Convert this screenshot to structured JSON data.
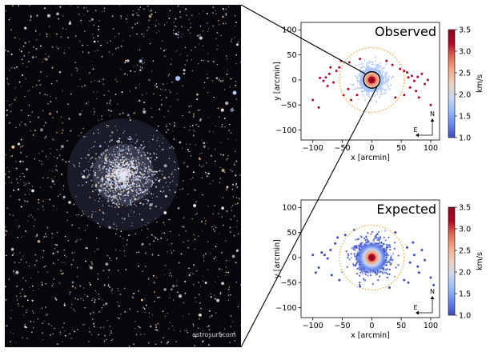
{
  "photo_credit": "astrosurf.com",
  "colorbar": {
    "label": "km/s",
    "ticks": [
      1.0,
      1.5,
      2.0,
      2.5,
      3.0,
      3.5
    ],
    "tick_labels": [
      "1.0",
      "1.5",
      "2.0",
      "2.5",
      "3.0",
      "3.5"
    ],
    "cmap_stops": [
      "#3b4cc0",
      "#6788ee",
      "#9abbff",
      "#c9d7f0",
      "#edd1c2",
      "#f7a889",
      "#e26952",
      "#b40426",
      "#8c0a1f"
    ]
  },
  "compass": {
    "north": "N",
    "east": "E"
  },
  "chart_data": [
    {
      "type": "scatter",
      "title": "Observed",
      "xlabel": "x [arcmin]",
      "ylabel": "y [arcmin]",
      "xlim": [
        -120,
        115
      ],
      "ylim": [
        -120,
        115
      ],
      "xticks": [
        -100,
        -50,
        0,
        50,
        100
      ],
      "yticks": [
        -100,
        -50,
        0,
        50,
        100
      ],
      "tidal_radius": 55,
      "core_zoom_radius": 14,
      "sparse_red_stars": [
        [
          -78,
          5
        ],
        [
          -82,
          -2
        ],
        [
          -72,
          12
        ],
        [
          -65,
          -5
        ],
        [
          -88,
          4
        ],
        [
          -75,
          -12
        ],
        [
          -60,
          18
        ],
        [
          -55,
          25
        ],
        [
          -48,
          -30
        ],
        [
          -52,
          38
        ],
        [
          -38,
          35
        ],
        [
          -35,
          -40
        ],
        [
          -20,
          42
        ],
        [
          25,
          38
        ],
        [
          35,
          30
        ],
        [
          48,
          22
        ],
        [
          55,
          18
        ],
        [
          60,
          15
        ],
        [
          62,
          5
        ],
        [
          68,
          8
        ],
        [
          72,
          -2
        ],
        [
          78,
          6
        ],
        [
          85,
          12
        ],
        [
          65,
          -15
        ],
        [
          75,
          -22
        ],
        [
          90,
          -8
        ],
        [
          55,
          -30
        ],
        [
          80,
          -35
        ],
        [
          100,
          -50
        ],
        [
          -25,
          -30
        ],
        [
          -40,
          -18
        ],
        [
          -100,
          -40
        ],
        [
          -90,
          -55
        ],
        [
          -70,
          25
        ],
        [
          40,
          -35
        ],
        [
          95,
          0
        ]
      ]
    },
    {
      "type": "scatter",
      "title": "Expected",
      "xlabel": "x [arcmin]",
      "ylabel": "y [arcmin]",
      "xlim": [
        -120,
        115
      ],
      "ylim": [
        -120,
        115
      ],
      "xticks": [
        -100,
        -50,
        0,
        50,
        100
      ],
      "yticks": [
        -100,
        -50,
        0,
        50,
        100
      ],
      "tidal_radius": 55,
      "sparse_blue_stars": [
        [
          -75,
          -2
        ],
        [
          -80,
          5
        ],
        [
          -90,
          -20
        ],
        [
          -70,
          15
        ],
        [
          -68,
          -35
        ],
        [
          -85,
          10
        ],
        [
          -62,
          28
        ],
        [
          -55,
          -45
        ],
        [
          -45,
          45
        ],
        [
          -30,
          55
        ],
        [
          -20,
          -58
        ],
        [
          60,
          20
        ],
        [
          65,
          -10
        ],
        [
          72,
          5
        ],
        [
          78,
          -18
        ],
        [
          80,
          -30
        ],
        [
          85,
          15
        ],
        [
          90,
          -5
        ],
        [
          70,
          30
        ],
        [
          55,
          -45
        ],
        [
          100,
          -40
        ],
        [
          105,
          -55
        ],
        [
          -95,
          -30
        ],
        [
          -100,
          5
        ],
        [
          40,
          50
        ],
        [
          30,
          -60
        ],
        [
          62,
          -50
        ],
        [
          -58,
          40
        ]
      ]
    }
  ]
}
